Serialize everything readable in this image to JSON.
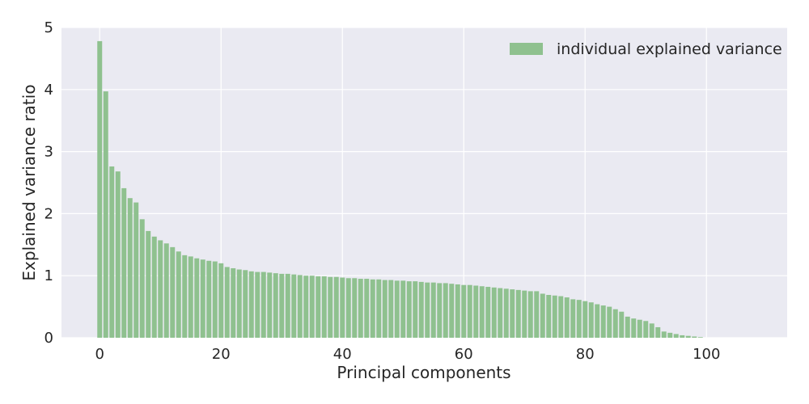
{
  "chart_data": {
    "type": "bar",
    "xlabel": "Principal components",
    "ylabel": "Explained variance ratio",
    "xlim": [
      -6.3,
      113.3
    ],
    "ylim": [
      0,
      5
    ],
    "xticks": [
      0,
      20,
      40,
      60,
      80,
      100
    ],
    "yticks": [
      0,
      1,
      2,
      3,
      4,
      5
    ],
    "grid": true,
    "legend": {
      "position": "top-right",
      "entries": [
        "individual explained variance"
      ]
    },
    "colors": {
      "bar": "#8fc18f",
      "plot_background": "#eaeaf2",
      "grid": "#ffffff",
      "text": "#262626"
    },
    "series": [
      {
        "name": "individual explained variance",
        "x": [
          0,
          1,
          2,
          3,
          4,
          5,
          6,
          7,
          8,
          9,
          10,
          11,
          12,
          13,
          14,
          15,
          16,
          17,
          18,
          19,
          20,
          21,
          22,
          23,
          24,
          25,
          26,
          27,
          28,
          29,
          30,
          31,
          32,
          33,
          34,
          35,
          36,
          37,
          38,
          39,
          40,
          41,
          42,
          43,
          44,
          45,
          46,
          47,
          48,
          49,
          50,
          51,
          52,
          53,
          54,
          55,
          56,
          57,
          58,
          59,
          60,
          61,
          62,
          63,
          64,
          65,
          66,
          67,
          68,
          69,
          70,
          71,
          72,
          73,
          74,
          75,
          76,
          77,
          78,
          79,
          80,
          81,
          82,
          83,
          84,
          85,
          86,
          87,
          88,
          89,
          90,
          91,
          92,
          93,
          94,
          95,
          96,
          97,
          98,
          99
        ],
        "values": [
          4.78,
          3.97,
          2.76,
          2.68,
          2.41,
          2.25,
          2.18,
          1.91,
          1.72,
          1.63,
          1.57,
          1.52,
          1.46,
          1.39,
          1.33,
          1.31,
          1.28,
          1.26,
          1.24,
          1.23,
          1.2,
          1.14,
          1.12,
          1.1,
          1.09,
          1.07,
          1.06,
          1.06,
          1.05,
          1.04,
          1.03,
          1.03,
          1.02,
          1.01,
          1.0,
          1.0,
          0.99,
          0.99,
          0.98,
          0.98,
          0.97,
          0.96,
          0.96,
          0.95,
          0.95,
          0.94,
          0.94,
          0.93,
          0.93,
          0.92,
          0.92,
          0.91,
          0.91,
          0.9,
          0.89,
          0.89,
          0.88,
          0.88,
          0.87,
          0.86,
          0.85,
          0.85,
          0.84,
          0.83,
          0.82,
          0.81,
          0.8,
          0.79,
          0.78,
          0.77,
          0.76,
          0.75,
          0.75,
          0.71,
          0.69,
          0.68,
          0.67,
          0.65,
          0.62,
          0.61,
          0.59,
          0.57,
          0.54,
          0.52,
          0.5,
          0.46,
          0.42,
          0.34,
          0.31,
          0.29,
          0.27,
          0.23,
          0.17,
          0.1,
          0.08,
          0.06,
          0.04,
          0.03,
          0.02,
          0.01
        ]
      }
    ]
  }
}
